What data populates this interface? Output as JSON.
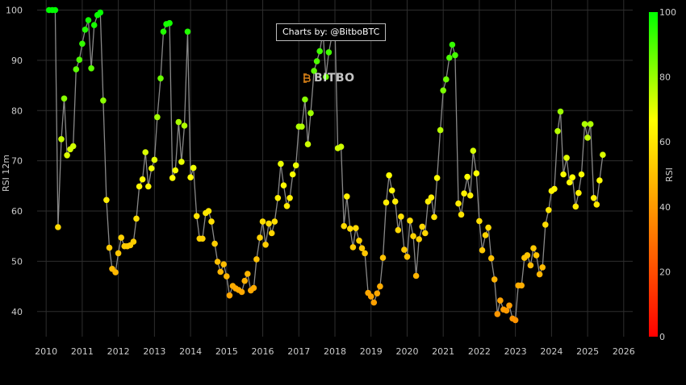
{
  "credit": "Charts by: @BitboBTC",
  "logo_text": "BITBO",
  "chart_data": {
    "type": "scatter",
    "ylabel": "RSI 12m",
    "colorbar_label": "RSI",
    "xlim": [
      2009.75,
      2026.25
    ],
    "ylim": [
      35,
      102
    ],
    "x_ticks": [
      2010,
      2011,
      2012,
      2013,
      2014,
      2015,
      2016,
      2017,
      2018,
      2019,
      2020,
      2021,
      2022,
      2023,
      2024,
      2025,
      2026
    ],
    "y_ticks": [
      40,
      50,
      60,
      70,
      80,
      90,
      100
    ],
    "colorbar_ticks": [
      0,
      20,
      40,
      60,
      80,
      100
    ],
    "colorscale": [
      "#ff0000",
      "#ff8000",
      "#ffff00",
      "#00ff00"
    ],
    "line_color": "#888888",
    "grid": true,
    "points": [
      [
        2010.08,
        100
      ],
      [
        2010.17,
        100
      ],
      [
        2010.25,
        100
      ],
      [
        2010.33,
        56.8
      ],
      [
        2010.42,
        74.3
      ],
      [
        2010.5,
        82.4
      ],
      [
        2010.58,
        71.1
      ],
      [
        2010.67,
        72.3
      ],
      [
        2010.75,
        72.9
      ],
      [
        2010.83,
        88.2
      ],
      [
        2010.92,
        90.1
      ],
      [
        2011.0,
        93.3
      ],
      [
        2011.08,
        96.1
      ],
      [
        2011.17,
        98.0
      ],
      [
        2011.25,
        88.4
      ],
      [
        2011.33,
        97.0
      ],
      [
        2011.42,
        99.0
      ],
      [
        2011.5,
        99.5
      ],
      [
        2011.58,
        82.0
      ],
      [
        2011.67,
        62.2
      ],
      [
        2011.75,
        52.7
      ],
      [
        2011.83,
        48.5
      ],
      [
        2011.92,
        47.8
      ],
      [
        2012.0,
        51.6
      ],
      [
        2012.08,
        54.7
      ],
      [
        2012.17,
        53.0
      ],
      [
        2012.25,
        53.0
      ],
      [
        2012.33,
        53.2
      ],
      [
        2012.42,
        53.9
      ],
      [
        2012.5,
        58.5
      ],
      [
        2012.58,
        64.9
      ],
      [
        2012.67,
        66.3
      ],
      [
        2012.75,
        71.7
      ],
      [
        2012.83,
        64.9
      ],
      [
        2012.92,
        68.5
      ],
      [
        2013.0,
        70.2
      ],
      [
        2013.08,
        78.7
      ],
      [
        2013.17,
        86.4
      ],
      [
        2013.25,
        95.7
      ],
      [
        2013.33,
        97.2
      ],
      [
        2013.42,
        97.4
      ],
      [
        2013.5,
        66.6
      ],
      [
        2013.58,
        68.1
      ],
      [
        2013.67,
        77.7
      ],
      [
        2013.75,
        69.8
      ],
      [
        2013.83,
        77.0
      ],
      [
        2013.92,
        95.7
      ],
      [
        2014.0,
        66.7
      ],
      [
        2014.08,
        68.6
      ],
      [
        2014.17,
        59.0
      ],
      [
        2014.25,
        54.5
      ],
      [
        2014.33,
        54.5
      ],
      [
        2014.42,
        59.6
      ],
      [
        2014.5,
        60.0
      ],
      [
        2014.58,
        57.9
      ],
      [
        2014.67,
        53.5
      ],
      [
        2014.75,
        49.9
      ],
      [
        2014.83,
        47.9
      ],
      [
        2014.92,
        49.4
      ],
      [
        2015.0,
        47.0
      ],
      [
        2015.08,
        43.2
      ],
      [
        2015.17,
        45.1
      ],
      [
        2015.25,
        44.6
      ],
      [
        2015.33,
        44.3
      ],
      [
        2015.42,
        43.9
      ],
      [
        2015.5,
        46.1
      ],
      [
        2015.58,
        47.5
      ],
      [
        2015.67,
        44.2
      ],
      [
        2015.75,
        44.7
      ],
      [
        2015.83,
        50.4
      ],
      [
        2015.92,
        54.7
      ],
      [
        2016.0,
        57.9
      ],
      [
        2016.08,
        53.3
      ],
      [
        2016.17,
        57.5
      ],
      [
        2016.25,
        55.6
      ],
      [
        2016.33,
        57.9
      ],
      [
        2016.42,
        62.6
      ],
      [
        2016.5,
        69.4
      ],
      [
        2016.58,
        65.1
      ],
      [
        2016.67,
        61.0
      ],
      [
        2016.75,
        62.6
      ],
      [
        2016.83,
        67.3
      ],
      [
        2016.92,
        69.1
      ],
      [
        2017.0,
        76.8
      ],
      [
        2017.08,
        76.8
      ],
      [
        2017.17,
        82.2
      ],
      [
        2017.25,
        73.3
      ],
      [
        2017.33,
        79.5
      ],
      [
        2017.42,
        87.9
      ],
      [
        2017.5,
        89.8
      ],
      [
        2017.58,
        91.8
      ],
      [
        2017.67,
        95.6
      ],
      [
        2017.75,
        86.7
      ],
      [
        2017.83,
        91.6
      ],
      [
        2017.92,
        95.0
      ],
      [
        2018.0,
        96.6
      ],
      [
        2018.08,
        72.5
      ],
      [
        2018.17,
        72.8
      ],
      [
        2018.25,
        57.0
      ],
      [
        2018.33,
        62.9
      ],
      [
        2018.42,
        56.5
      ],
      [
        2018.5,
        52.8
      ],
      [
        2018.58,
        56.6
      ],
      [
        2018.67,
        54.1
      ],
      [
        2018.75,
        52.6
      ],
      [
        2018.83,
        51.6
      ],
      [
        2018.92,
        43.7
      ],
      [
        2019.0,
        43.0
      ],
      [
        2019.08,
        41.8
      ],
      [
        2019.17,
        43.6
      ],
      [
        2019.25,
        45.0
      ],
      [
        2019.33,
        50.7
      ],
      [
        2019.42,
        61.7
      ],
      [
        2019.5,
        67.1
      ],
      [
        2019.58,
        64.1
      ],
      [
        2019.67,
        61.9
      ],
      [
        2019.75,
        56.2
      ],
      [
        2019.83,
        58.9
      ],
      [
        2019.92,
        52.3
      ],
      [
        2020.0,
        50.9
      ],
      [
        2020.08,
        58.1
      ],
      [
        2020.17,
        55.0
      ],
      [
        2020.25,
        47.1
      ],
      [
        2020.33,
        54.4
      ],
      [
        2020.42,
        56.9
      ],
      [
        2020.5,
        55.6
      ],
      [
        2020.58,
        61.9
      ],
      [
        2020.67,
        62.7
      ],
      [
        2020.75,
        58.8
      ],
      [
        2020.83,
        66.6
      ],
      [
        2020.92,
        76.1
      ],
      [
        2021.0,
        84.0
      ],
      [
        2021.08,
        86.2
      ],
      [
        2021.17,
        90.5
      ],
      [
        2021.25,
        93.1
      ],
      [
        2021.33,
        91.0
      ],
      [
        2021.42,
        61.5
      ],
      [
        2021.5,
        59.3
      ],
      [
        2021.58,
        63.5
      ],
      [
        2021.67,
        66.8
      ],
      [
        2021.75,
        63.1
      ],
      [
        2021.83,
        72.0
      ],
      [
        2021.92,
        67.5
      ],
      [
        2022.0,
        58.0
      ],
      [
        2022.08,
        52.2
      ],
      [
        2022.17,
        55.2
      ],
      [
        2022.25,
        56.7
      ],
      [
        2022.33,
        50.6
      ],
      [
        2022.42,
        46.4
      ],
      [
        2022.5,
        39.5
      ],
      [
        2022.58,
        42.2
      ],
      [
        2022.67,
        40.4
      ],
      [
        2022.75,
        40.2
      ],
      [
        2022.83,
        41.2
      ],
      [
        2022.92,
        38.6
      ],
      [
        2023.0,
        38.3
      ],
      [
        2023.08,
        45.2
      ],
      [
        2023.17,
        45.2
      ],
      [
        2023.25,
        50.7
      ],
      [
        2023.33,
        51.2
      ],
      [
        2023.42,
        49.2
      ],
      [
        2023.5,
        52.6
      ],
      [
        2023.58,
        51.2
      ],
      [
        2023.67,
        47.4
      ],
      [
        2023.75,
        48.8
      ],
      [
        2023.83,
        57.3
      ],
      [
        2023.92,
        60.2
      ],
      [
        2024.0,
        64.0
      ],
      [
        2024.08,
        64.4
      ],
      [
        2024.17,
        75.9
      ],
      [
        2024.25,
        79.8
      ],
      [
        2024.33,
        67.3
      ],
      [
        2024.42,
        70.6
      ],
      [
        2024.5,
        65.7
      ],
      [
        2024.58,
        66.7
      ],
      [
        2024.67,
        60.9
      ],
      [
        2024.75,
        63.6
      ],
      [
        2024.83,
        67.3
      ],
      [
        2024.92,
        77.3
      ],
      [
        2025.0,
        74.6
      ],
      [
        2025.08,
        77.3
      ],
      [
        2025.17,
        62.6
      ],
      [
        2025.25,
        61.3
      ],
      [
        2025.33,
        66.1
      ],
      [
        2025.42,
        71.2
      ]
    ]
  }
}
